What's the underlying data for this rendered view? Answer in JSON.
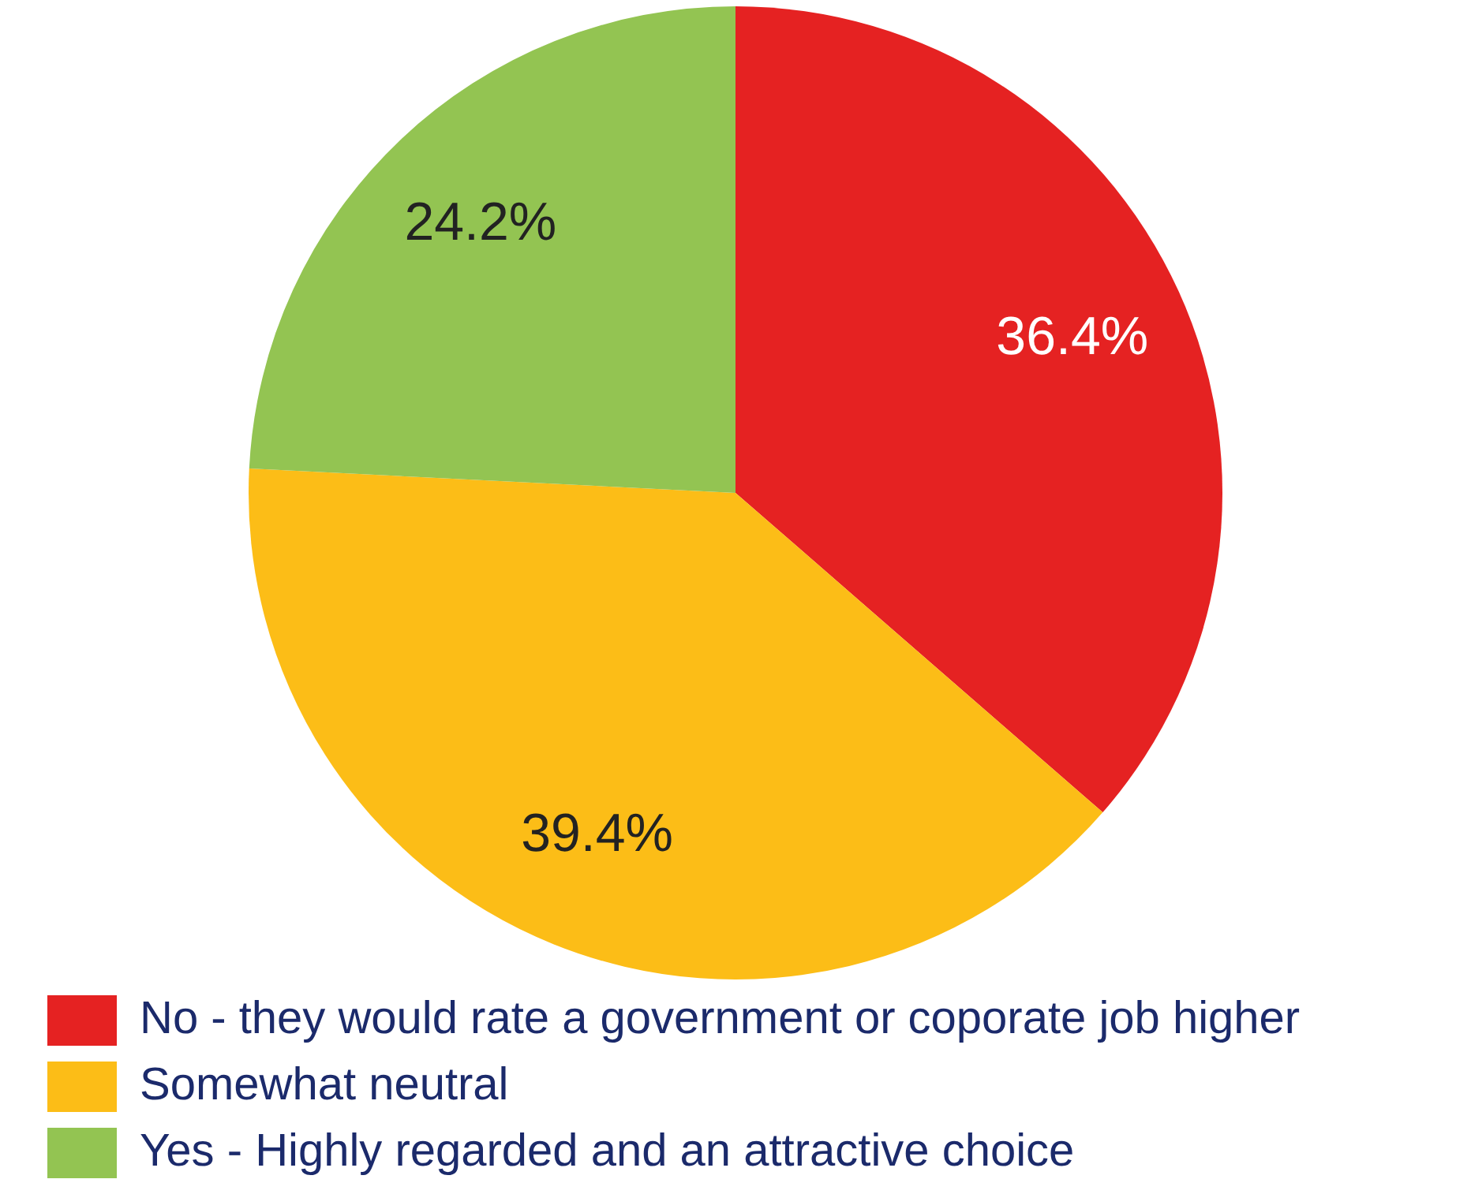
{
  "chart_data": {
    "type": "pie",
    "categories": [
      "No - they would rate a government or coporate job higher",
      "Somewhat neutral",
      "Yes - Highly regarded and an attractive choice"
    ],
    "values": [
      36.4,
      39.4,
      24.2
    ],
    "colors": [
      "#e52222",
      "#fcbd17",
      "#93c452"
    ],
    "value_labels": [
      "36.4%",
      "39.4%",
      "24.2%"
    ],
    "legend": "bottom left"
  }
}
